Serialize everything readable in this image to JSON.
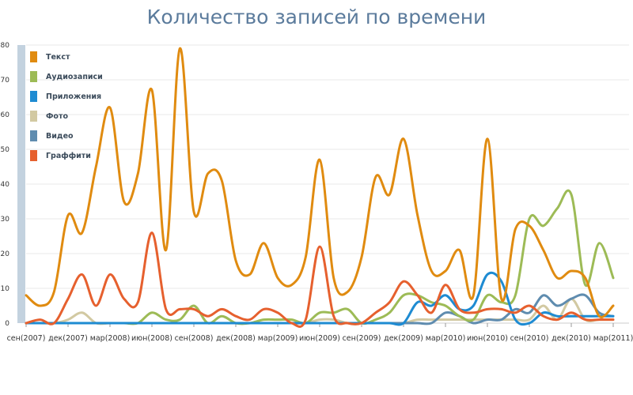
{
  "chart_data": {
    "type": "line",
    "title": "Количество записей по времени",
    "xlabel": "",
    "ylabel": "",
    "ylim": [
      0,
      80
    ],
    "yticks": [
      0,
      10,
      20,
      30,
      40,
      50,
      60,
      70,
      80
    ],
    "x_tick_labels": [
      "сен(2007)",
      "дек(2007)",
      "мар(2008)",
      "июн(2008)",
      "сен(2008)",
      "дек(2008)",
      "мар(2009)",
      "июн(2009)",
      "сен(2009)",
      "дек(2009)",
      "мар(2010)",
      "июн(2010)",
      "сен(2010)",
      "дек(2010)",
      "мар(2011)"
    ],
    "x": [
      "2007-09",
      "2007-10",
      "2007-11",
      "2007-12",
      "2008-01",
      "2008-02",
      "2008-03",
      "2008-04",
      "2008-05",
      "2008-06",
      "2008-07",
      "2008-08",
      "2008-09",
      "2008-10",
      "2008-11",
      "2008-12",
      "2009-01",
      "2009-02",
      "2009-03",
      "2009-04",
      "2009-05",
      "2009-06",
      "2009-07",
      "2009-08",
      "2009-09",
      "2009-10",
      "2009-11",
      "2009-12",
      "2010-01",
      "2010-02",
      "2010-03",
      "2010-04",
      "2010-05",
      "2010-06",
      "2010-07",
      "2010-08",
      "2010-09",
      "2010-10",
      "2010-11",
      "2010-12",
      "2011-01",
      "2011-02",
      "2011-03"
    ],
    "grid": true,
    "legend_position": "top-left",
    "series": [
      {
        "name": "Текст",
        "color": "#e08b10",
        "values": [
          8,
          5,
          9,
          31,
          26,
          45,
          62,
          35,
          43,
          67,
          21,
          79,
          32,
          43,
          41,
          18,
          14,
          23,
          13,
          11,
          19,
          47,
          13,
          9,
          19,
          42,
          37,
          53,
          31,
          15,
          15,
          21,
          8,
          53,
          7,
          27,
          28,
          21,
          13,
          15,
          13,
          2,
          5
        ]
      },
      {
        "name": "Аудиозаписи",
        "color": "#9dbb56",
        "values": [
          0,
          0,
          0,
          0,
          0,
          0,
          0,
          0,
          0,
          3,
          1,
          1,
          5,
          0,
          2,
          0,
          0,
          1,
          1,
          1,
          0,
          3,
          3,
          4,
          0,
          1,
          3,
          8,
          8,
          6,
          5,
          2,
          1,
          8,
          6,
          8,
          30,
          28,
          33,
          37,
          11,
          23,
          13
        ]
      },
      {
        "name": "Приложения",
        "color": "#1e8bd2",
        "values": [
          0,
          0,
          0,
          0,
          0,
          0,
          0,
          0,
          0,
          0,
          0,
          0,
          0,
          0,
          0,
          0,
          0,
          0,
          0,
          0,
          0,
          0,
          0,
          0,
          0,
          0,
          0,
          0,
          6,
          5,
          8,
          4,
          5,
          14,
          12,
          1,
          0,
          3,
          2,
          2,
          2,
          2,
          2
        ]
      },
      {
        "name": "Фото",
        "color": "#d2c9a2",
        "values": [
          0,
          0,
          0,
          1,
          3,
          0,
          0,
          0,
          0,
          0,
          0,
          0,
          0,
          0,
          0,
          0,
          0,
          0,
          0,
          0,
          0,
          1,
          1,
          0,
          0,
          0,
          0,
          0,
          1,
          1,
          1,
          1,
          1,
          1,
          1,
          1,
          1,
          5,
          1,
          7,
          1,
          1,
          1
        ]
      },
      {
        "name": "Видео",
        "color": "#5f8caf",
        "values": [
          0,
          0,
          0,
          0,
          0,
          0,
          0,
          0,
          0,
          0,
          0,
          0,
          0,
          0,
          0,
          0,
          0,
          0,
          0,
          0,
          0,
          0,
          0,
          0,
          0,
          0,
          0,
          0,
          0,
          0,
          3,
          2,
          0,
          1,
          1,
          4,
          3,
          8,
          5,
          7,
          8,
          3,
          2
        ]
      },
      {
        "name": "Граффити",
        "color": "#e6602e",
        "values": [
          0,
          1,
          0,
          7,
          14,
          5,
          14,
          7,
          6,
          26,
          4,
          4,
          4,
          2,
          4,
          2,
          1,
          4,
          3,
          0,
          1,
          22,
          2,
          0,
          0,
          3,
          6,
          12,
          8,
          3,
          11,
          4,
          3,
          4,
          4,
          3,
          5,
          2,
          1,
          3,
          1,
          1,
          1
        ]
      }
    ]
  }
}
